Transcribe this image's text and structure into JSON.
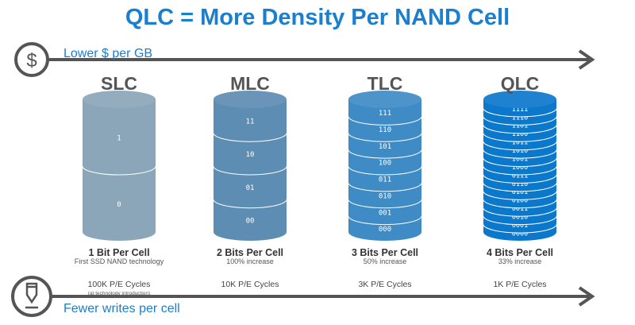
{
  "title": "QLC = More Density Per NAND Cell",
  "top_axis": {
    "label": "Lower $ per GB",
    "icon": "dollar-icon"
  },
  "bottom_axis": {
    "label": "Fewer writes per cell",
    "icon": "pencil-icon"
  },
  "colors": {
    "accent": "#1a7fcf",
    "arrow": "#555555"
  },
  "technologies": [
    {
      "name": "SLC",
      "bits": "1 Bit Per Cell",
      "sub": "First SSD NAND technology",
      "pe": "100K P/E Cycles",
      "pe_note": "(at technology introduction)",
      "color": "#8ba6b9",
      "levels": [
        "1",
        "0"
      ]
    },
    {
      "name": "MLC",
      "bits": "2 Bits Per Cell",
      "sub": "100% increase",
      "pe": "10K P/E Cycles",
      "color": "#5e8db4",
      "levels": [
        "11",
        "10",
        "01",
        "00"
      ]
    },
    {
      "name": "TLC",
      "bits": "3 Bits Per Cell",
      "sub": "50% increase",
      "pe": "3K P/E Cycles",
      "color": "#3e8bc6",
      "levels": [
        "111",
        "110",
        "101",
        "100",
        "011",
        "010",
        "001",
        "000"
      ]
    },
    {
      "name": "QLC",
      "bits": "4 Bits Per Cell",
      "sub": "33% increase",
      "pe": "1K P/E Cycles",
      "color": "#0b78cc",
      "levels": [
        "1111",
        "1110",
        "1101",
        "1100",
        "1011",
        "1010",
        "1001",
        "1000",
        "0111",
        "0110",
        "0101",
        "0100",
        "0011",
        "0010",
        "0001",
        "0000"
      ]
    }
  ]
}
